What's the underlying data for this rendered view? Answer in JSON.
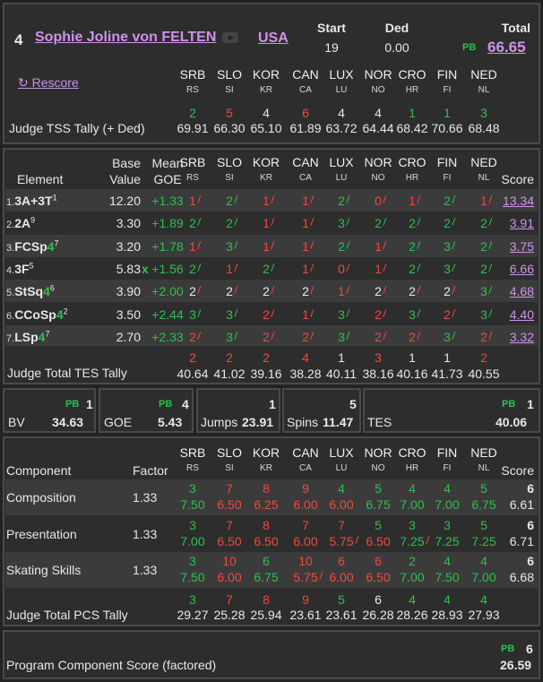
{
  "skater": {
    "rank": "4",
    "name": "Sophie Joline von FELTEN",
    "country": "USA"
  },
  "summary": {
    "start_label": "Start",
    "start": "19",
    "ded_label": "Ded",
    "ded": "0.00",
    "total_label": "Total",
    "pb": "PB",
    "total": "66.65"
  },
  "rescore_label": "↻ Rescore",
  "judges": [
    {
      "name": "SRB",
      "code": "RS"
    },
    {
      "name": "SLO",
      "code": "SI"
    },
    {
      "name": "KOR",
      "code": "KR"
    },
    {
      "name": "CAN",
      "code": "CA"
    },
    {
      "name": "LUX",
      "code": "LU"
    },
    {
      "name": "NOR",
      "code": "NO"
    },
    {
      "name": "CRO",
      "code": "HR"
    },
    {
      "name": "FIN",
      "code": "FI"
    },
    {
      "name": "NED",
      "code": "NL"
    }
  ],
  "tss": {
    "label": "Judge TSS Tally (+ Ded)",
    "ranks": [
      "2",
      "5",
      "4",
      "6",
      "4",
      "4",
      "1",
      "1",
      "3"
    ],
    "colors": [
      "grn",
      "red",
      "wht",
      "red",
      "wht",
      "wht",
      "grn",
      "grn",
      "grn"
    ],
    "values": [
      "69.91",
      "66.30",
      "65.10",
      "61.89",
      "63.72",
      "64.44",
      "68.42",
      "70.66",
      "68.48"
    ]
  },
  "elements_header": {
    "element": "Element",
    "base": "Base",
    "value": "Value",
    "mean": "Mean",
    "goe": "GOE",
    "score": "Score"
  },
  "elements": [
    {
      "num": "1.",
      "name": "3A+3T",
      "sup": "1",
      "lvl": "",
      "base": "12.20",
      "x": "",
      "goe": "+1.33",
      "score": "13.34",
      "judges": [
        "1",
        "2",
        "1",
        "1",
        "2",
        "0",
        "1",
        "2",
        "1"
      ],
      "colors": [
        "red",
        "grn",
        "red",
        "red",
        "grn",
        "red",
        "red",
        "grn",
        "red"
      ]
    },
    {
      "num": "2.",
      "name": "2A",
      "sup": "9",
      "lvl": "",
      "base": "3.30",
      "x": "",
      "goe": "+1.89",
      "score": "3.91",
      "judges": [
        "2",
        "2",
        "1",
        "1",
        "3",
        "2",
        "2",
        "2",
        "2"
      ],
      "colors": [
        "grn",
        "grn",
        "red",
        "red",
        "grn",
        "grn",
        "grn",
        "grn",
        "grn"
      ]
    },
    {
      "num": "3.",
      "name": "FCSp",
      "sup": "7",
      "lvl": "4",
      "base": "3.20",
      "x": "",
      "goe": "+1.78",
      "score": "3.75",
      "judges": [
        "1",
        "3",
        "1",
        "1",
        "2",
        "1",
        "2",
        "3",
        "2"
      ],
      "colors": [
        "red",
        "grn",
        "red",
        "red",
        "grn",
        "red",
        "grn",
        "grn",
        "grn"
      ]
    },
    {
      "num": "4.",
      "name": "3F",
      "sup": "5",
      "lvl": "",
      "base": "5.83",
      "x": "x",
      "goe": "+1.56",
      "score": "6.66",
      "judges": [
        "2",
        "1",
        "2",
        "1",
        "0",
        "1",
        "2",
        "3",
        "2"
      ],
      "colors": [
        "grn",
        "red",
        "grn",
        "red",
        "red",
        "red",
        "grn",
        "grn",
        "grn"
      ]
    },
    {
      "num": "5.",
      "name": "StSq",
      "sup": "6",
      "lvl": "4",
      "base": "3.90",
      "x": "",
      "goe": "+2.00",
      "score": "4.68",
      "judges": [
        "2",
        "2",
        "2",
        "2",
        "1",
        "2",
        "2",
        "2",
        "3"
      ],
      "colors": [
        "wht",
        "wht",
        "wht",
        "wht",
        "red",
        "wht",
        "wht",
        "wht",
        "grn"
      ]
    },
    {
      "num": "6.",
      "name": "CCoSp",
      "sup": "2",
      "lvl": "4",
      "base": "3.50",
      "x": "",
      "goe": "+2.44",
      "score": "4.40",
      "judges": [
        "3",
        "3",
        "2",
        "1",
        "3",
        "2",
        "3",
        "2",
        "3"
      ],
      "colors": [
        "grn",
        "grn",
        "red",
        "red",
        "grn",
        "red",
        "grn",
        "red",
        "grn"
      ]
    },
    {
      "num": "7.",
      "name": "LSp",
      "sup": "7",
      "lvl": "4",
      "base": "2.70",
      "x": "",
      "goe": "+2.33",
      "score": "3.32",
      "judges": [
        "2",
        "3",
        "2",
        "2",
        "3",
        "2",
        "2",
        "3",
        "2"
      ],
      "colors": [
        "red",
        "grn",
        "red",
        "red",
        "grn",
        "red",
        "red",
        "grn",
        "red"
      ]
    }
  ],
  "tes_tally": {
    "label": "Judge Total TES Tally",
    "ranks": [
      "2",
      "2",
      "2",
      "4",
      "1",
      "3",
      "1",
      "1",
      "2"
    ],
    "colors": [
      "red",
      "red",
      "red",
      "red",
      "wht",
      "red",
      "wht",
      "wht",
      "red"
    ],
    "values": [
      "40.64",
      "41.02",
      "39.16",
      "38.28",
      "40.11",
      "38.16",
      "40.16",
      "41.73",
      "40.55"
    ]
  },
  "boxes": {
    "bv": {
      "label": "BV",
      "value": "34.63"
    },
    "goe": {
      "pb": "PB",
      "rank": "4",
      "label": "GOE",
      "value": "5.43"
    },
    "jumps": {
      "rank": "1",
      "label": "Jumps",
      "value": "23.91"
    },
    "spins": {
      "rank": "5",
      "label": "Spins",
      "value": "11.47"
    },
    "tes": {
      "pb": "PB",
      "rank": "1",
      "label": "TES",
      "value": "40.06"
    },
    "bv_pb": "PB",
    "bv_rank": "1"
  },
  "components_header": {
    "component": "Component",
    "factor": "Factor",
    "score": "Score"
  },
  "components": [
    {
      "name": "Composition",
      "factor": "1.33",
      "rank": "6",
      "score": "6.61",
      "ranks": [
        "3",
        "7",
        "8",
        "9",
        "4",
        "5",
        "4",
        "4",
        "5"
      ],
      "rcolors": [
        "grn",
        "red",
        "red",
        "red",
        "grn",
        "grn",
        "grn",
        "grn",
        "grn"
      ],
      "marks": [
        "7.50",
        "6.50",
        "6.25",
        "6.00",
        "6.00",
        "6.75",
        "7.00",
        "7.00",
        "6.75"
      ],
      "mcolors": [
        "grn",
        "red",
        "red",
        "red",
        "red",
        "grn",
        "grn",
        "grn",
        "grn"
      ],
      "slashed": []
    },
    {
      "name": "Presentation",
      "factor": "1.33",
      "rank": "6",
      "score": "6.71",
      "ranks": [
        "3",
        "7",
        "8",
        "7",
        "7",
        "5",
        "3",
        "3",
        "5"
      ],
      "rcolors": [
        "grn",
        "red",
        "red",
        "red",
        "red",
        "grn",
        "grn",
        "grn",
        "grn"
      ],
      "marks": [
        "7.00",
        "6.50",
        "6.50",
        "6.00",
        "5.75",
        "6.50",
        "7.25",
        "7.25",
        "7.25"
      ],
      "mcolors": [
        "grn",
        "red",
        "red",
        "red",
        "red",
        "red",
        "grn",
        "grn",
        "grn"
      ],
      "slashed": [
        4,
        6
      ]
    },
    {
      "name": "Skating Skills",
      "factor": "1.33",
      "rank": "6",
      "score": "6.68",
      "ranks": [
        "3",
        "10",
        "6",
        "10",
        "6",
        "6",
        "2",
        "4",
        "4"
      ],
      "rcolors": [
        "grn",
        "red",
        "grn",
        "red",
        "red",
        "red",
        "grn",
        "grn",
        "grn"
      ],
      "marks": [
        "7.50",
        "6.00",
        "6.75",
        "5.75",
        "6.00",
        "6.50",
        "7.00",
        "7.50",
        "7.00"
      ],
      "mcolors": [
        "grn",
        "red",
        "grn",
        "red",
        "red",
        "red",
        "grn",
        "grn",
        "grn"
      ],
      "slashed": [
        3
      ]
    }
  ],
  "pcs_tally": {
    "label": "Judge Total PCS Tally",
    "ranks": [
      "3",
      "7",
      "8",
      "9",
      "5",
      "6",
      "4",
      "4",
      "4"
    ],
    "colors": [
      "grn",
      "red",
      "red",
      "red",
      "grn",
      "wht",
      "grn",
      "grn",
      "grn"
    ],
    "values": [
      "29.27",
      "25.28",
      "25.94",
      "23.61",
      "23.61",
      "26.28",
      "28.26",
      "28.93",
      "27.93"
    ]
  },
  "pcs": {
    "label": "Program Component Score (factored)",
    "pb": "PB",
    "rank": "6",
    "value": "26.59"
  }
}
